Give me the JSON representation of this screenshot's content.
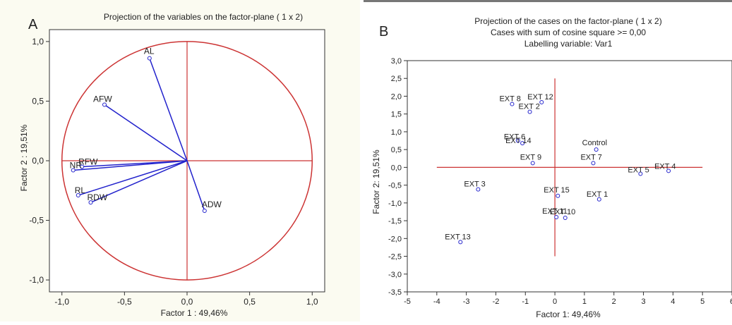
{
  "chart_data": [
    {
      "type": "scatter",
      "panel_letter": "A",
      "title": "Projection of the variables on the factor-plane (  1 x   2)",
      "xlabel": "Factor 1 : 49,46%",
      "ylabel": "Factor 2 : 19,51%",
      "xlim": [
        -1.1,
        1.1
      ],
      "ylim": [
        -1.1,
        1.1
      ],
      "xticks": [
        "-1,0",
        "-0,5",
        "0,0",
        "0,5",
        "1,0"
      ],
      "xtick_values": [
        -1.0,
        -0.5,
        0.0,
        0.5,
        1.0
      ],
      "yticks": [
        "1,0",
        "0,5",
        "0,0",
        "-0,5",
        "-1,0"
      ],
      "ytick_values": [
        1.0,
        0.5,
        0.0,
        -0.5,
        -1.0
      ],
      "unit_circle": true,
      "grid": false,
      "points": [
        {
          "label": "AL",
          "x": -0.3,
          "y": 0.86
        },
        {
          "label": "AFW",
          "x": -0.66,
          "y": 0.47
        },
        {
          "label": "RFW",
          "x": -0.84,
          "y": -0.05
        },
        {
          "label": "NR",
          "x": -0.91,
          "y": -0.08
        },
        {
          "label": "RL",
          "x": -0.87,
          "y": -0.29
        },
        {
          "label": "RDW",
          "x": -0.77,
          "y": -0.35
        },
        {
          "label": "ADW",
          "x": 0.14,
          "y": -0.42
        }
      ]
    },
    {
      "type": "scatter",
      "panel_letter": "B",
      "title": "Projection of the cases on the factor-plane (  1 x   2)",
      "subtitle": "Cases with sum of cosine square >= 0,00",
      "subtitle2": "Labelling variable: Var1",
      "xlabel": "Factor 1: 49,46%",
      "ylabel": "Factor 2: 19,51%",
      "xlim": [
        -5,
        6
      ],
      "ylim": [
        -3.5,
        3.0
      ],
      "xticks": [
        "-5",
        "-4",
        "-3",
        "-2",
        "-1",
        "0",
        "1",
        "2",
        "3",
        "4",
        "5",
        "6"
      ],
      "xtick_values": [
        -5,
        -4,
        -3,
        -2,
        -1,
        0,
        1,
        2,
        3,
        4,
        5,
        6
      ],
      "yticks": [
        "3,0",
        "2,5",
        "2,0",
        "1,5",
        "1,0",
        "0,5",
        "0,0",
        "-0,5",
        "-1,0",
        "-1,5",
        "-2,0",
        "-2,5",
        "-3,0",
        "-3,5"
      ],
      "ytick_values": [
        3.0,
        2.5,
        2.0,
        1.5,
        1.0,
        0.5,
        0.0,
        -0.5,
        -1.0,
        -1.5,
        -2.0,
        -2.5,
        -3.0,
        -3.5
      ],
      "grid": false,
      "cross_x": [
        -4,
        5
      ],
      "cross_y": [
        -2.5,
        2.5
      ],
      "points": [
        {
          "label": "EXT 8",
          "x": -1.45,
          "y": 1.78
        },
        {
          "label": "EXT 12",
          "x": -0.45,
          "y": 1.83
        },
        {
          "label": "EXT 2",
          "x": -0.85,
          "y": 1.56
        },
        {
          "label": "EXT 6",
          "x": -1.25,
          "y": 0.75
        },
        {
          "label": "EXT 14",
          "x": -1.1,
          "y": 0.68
        },
        {
          "label": "EXT 9",
          "x": -0.75,
          "y": 0.12
        },
        {
          "label": "Control",
          "x": 1.4,
          "y": 0.5
        },
        {
          "label": "EXT 7",
          "x": 1.3,
          "y": 0.12
        },
        {
          "label": "EXT 5",
          "x": 2.9,
          "y": -0.18
        },
        {
          "label": "EXT 4",
          "x": 3.85,
          "y": -0.1
        },
        {
          "label": "EXT 3",
          "x": -2.6,
          "y": -0.62
        },
        {
          "label": "EXT 15",
          "x": 0.1,
          "y": -0.8
        },
        {
          "label": "EXT 1",
          "x": 1.5,
          "y": -0.9
        },
        {
          "label": "EXT 11",
          "x": 0.05,
          "y": -1.4
        },
        {
          "label": "EXT 10",
          "x": 0.35,
          "y": -1.42
        },
        {
          "label": "EXT 13",
          "x": -3.2,
          "y": -2.1
        }
      ]
    }
  ]
}
